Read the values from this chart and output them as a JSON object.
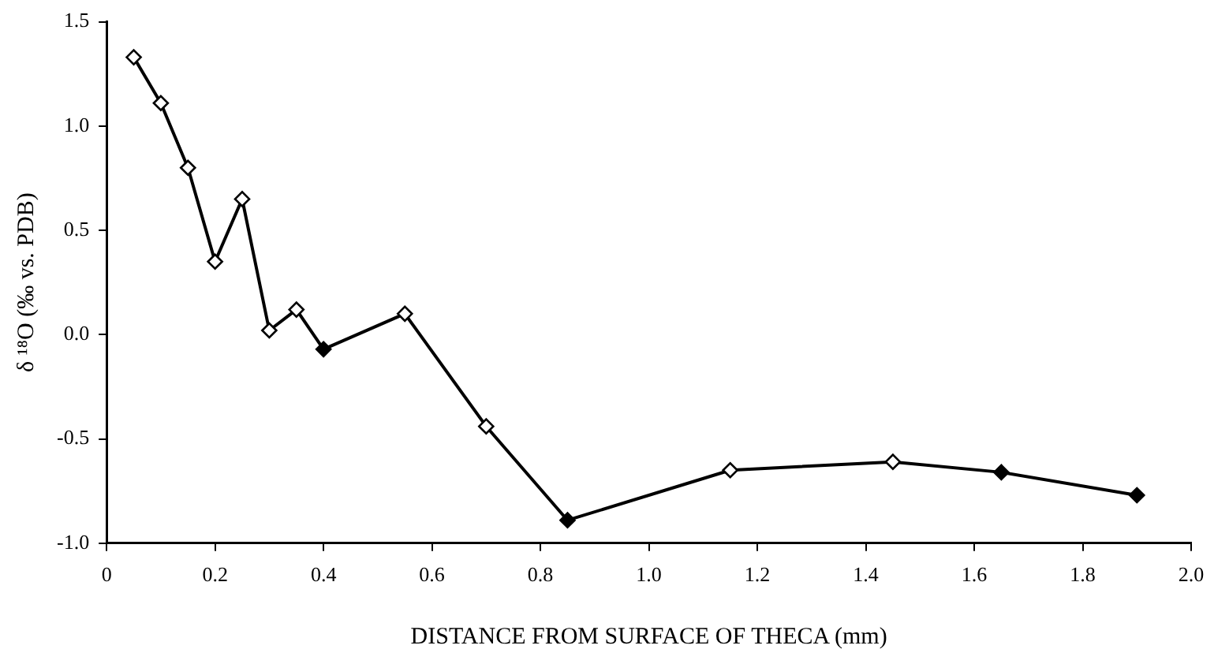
{
  "chart_data": {
    "type": "line",
    "xlabel": "DISTANCE FROM SURFACE OF THECA (mm)",
    "ylabel": "δ ¹⁸O (‰ vs. PDB)",
    "x": [
      0.05,
      0.1,
      0.15,
      0.2,
      0.25,
      0.3,
      0.35,
      0.4,
      0.55,
      0.7,
      0.85,
      1.15,
      1.45,
      1.65,
      1.9
    ],
    "series": [
      {
        "color": "#000000",
        "colors": [
          "#ffffff",
          "#ffffff",
          "#ffffff",
          "#ffffff",
          "#ffffff",
          "#ffffff",
          "#ffffff",
          "#000000",
          "#ffffff",
          "#ffffff",
          "#000000",
          "#ffffff",
          "#ffffff",
          "#000000",
          "#000000"
        ],
        "values": [
          1.33,
          1.11,
          0.8,
          0.35,
          0.65,
          0.02,
          0.12,
          -0.07,
          0.1,
          -0.44,
          -0.89,
          -0.65,
          -0.61,
          -0.66,
          -0.77
        ]
      }
    ],
    "xlim": [
      0,
      2
    ],
    "xticks": [
      0,
      0.2,
      0.4,
      0.6,
      0.8,
      {
        "value": 1,
        "label": "1.0"
      },
      1.2,
      1.4,
      1.6,
      1.8,
      {
        "value": 2,
        "label": "2.0"
      }
    ],
    "ylim": [
      -1,
      1.5
    ],
    "yticks": [
      {
        "value": -1,
        "label": "-1.0"
      },
      -0.5,
      {
        "value": 0,
        "label": "0.0"
      },
      0.5,
      {
        "value": 1,
        "label": "1.0"
      },
      1.5
    ],
    "grid": false,
    "legend": false,
    "marker": "diamond",
    "line_style": "solid"
  }
}
